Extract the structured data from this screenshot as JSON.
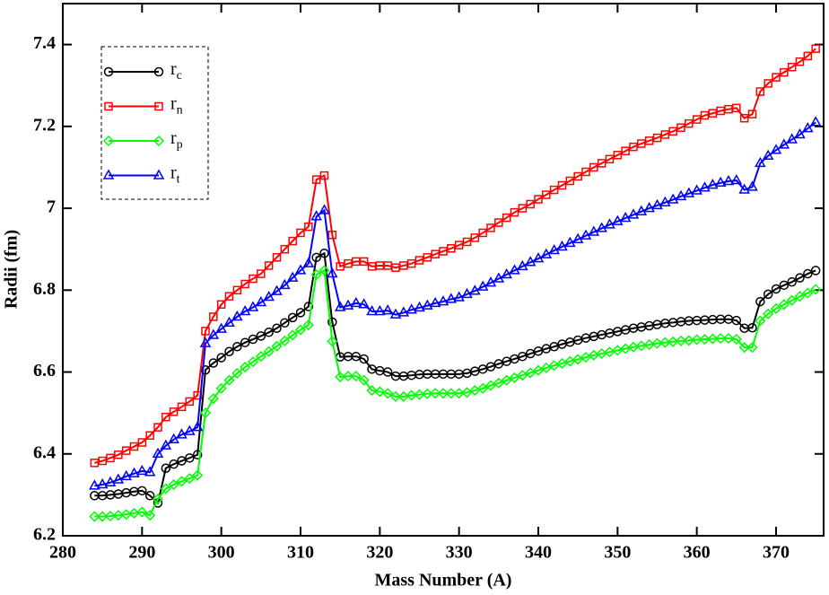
{
  "chart_data": {
    "type": "line",
    "xlabel": "Mass Number (A)",
    "ylabel": "Radii (fm)",
    "xlim": [
      280,
      376
    ],
    "ylim": [
      6.2,
      7.5
    ],
    "xticks": [
      280,
      290,
      300,
      310,
      320,
      330,
      340,
      350,
      360,
      370
    ],
    "yticks": [
      6.2,
      6.4,
      6.6,
      6.8,
      7,
      7.2,
      7.4
    ],
    "legend": "upper left",
    "x": [
      284,
      285,
      286,
      287,
      288,
      289,
      290,
      291,
      292,
      293,
      294,
      295,
      296,
      297,
      298,
      299,
      300,
      301,
      302,
      303,
      304,
      305,
      306,
      307,
      308,
      309,
      310,
      311,
      312,
      313,
      314,
      315,
      316,
      317,
      318,
      319,
      320,
      321,
      322,
      323,
      324,
      325,
      326,
      327,
      328,
      329,
      330,
      331,
      332,
      333,
      334,
      335,
      336,
      337,
      338,
      339,
      340,
      341,
      342,
      343,
      344,
      345,
      346,
      347,
      348,
      349,
      350,
      351,
      352,
      353,
      354,
      355,
      356,
      357,
      358,
      359,
      360,
      361,
      362,
      363,
      364,
      365,
      366,
      367,
      368,
      369,
      370,
      371,
      372,
      373,
      374,
      375
    ],
    "series": [
      {
        "name": "rc",
        "color": "#000000",
        "marker": "circle",
        "values": [
          6.298,
          6.298,
          6.3,
          6.302,
          6.305,
          6.308,
          6.31,
          6.298,
          6.28,
          6.365,
          6.375,
          6.383,
          6.39,
          6.398,
          6.605,
          6.622,
          6.635,
          6.65,
          6.662,
          6.672,
          6.68,
          6.688,
          6.697,
          6.707,
          6.72,
          6.733,
          6.745,
          6.76,
          6.88,
          6.89,
          6.722,
          6.637,
          6.638,
          6.638,
          6.632,
          6.607,
          6.603,
          6.6,
          6.59,
          6.59,
          6.592,
          6.594,
          6.595,
          6.595,
          6.595,
          6.595,
          6.595,
          6.597,
          6.602,
          6.607,
          6.613,
          6.62,
          6.626,
          6.632,
          6.638,
          6.645,
          6.651,
          6.657,
          6.662,
          6.668,
          6.673,
          6.678,
          6.683,
          6.687,
          6.691,
          6.695,
          6.699,
          6.703,
          6.707,
          6.71,
          6.713,
          6.716,
          6.719,
          6.721,
          6.723,
          6.725,
          6.726,
          6.727,
          6.728,
          6.729,
          6.729,
          6.726,
          6.707,
          6.708,
          6.772,
          6.79,
          6.803,
          6.812,
          6.82,
          6.83,
          6.84,
          6.848
        ]
      },
      {
        "name": "rn",
        "color": "#ff0000",
        "marker": "square",
        "values": [
          6.378,
          6.383,
          6.39,
          6.398,
          6.408,
          6.418,
          6.428,
          6.445,
          6.465,
          6.49,
          6.503,
          6.515,
          6.528,
          6.543,
          6.7,
          6.735,
          6.765,
          6.785,
          6.8,
          6.815,
          6.828,
          6.84,
          6.86,
          6.88,
          6.9,
          6.92,
          6.94,
          6.955,
          7.07,
          7.08,
          6.935,
          6.858,
          6.865,
          6.87,
          6.87,
          6.858,
          6.86,
          6.86,
          6.855,
          6.86,
          6.865,
          6.873,
          6.88,
          6.888,
          6.895,
          6.902,
          6.91,
          6.918,
          6.928,
          6.94,
          6.952,
          6.965,
          6.977,
          6.99,
          7.0,
          7.01,
          7.022,
          7.033,
          7.045,
          7.056,
          7.067,
          7.078,
          7.089,
          7.1,
          7.11,
          7.12,
          7.13,
          7.14,
          7.15,
          7.158,
          7.165,
          7.172,
          7.18,
          7.188,
          7.197,
          7.207,
          7.217,
          7.227,
          7.232,
          7.238,
          7.242,
          7.245,
          7.22,
          7.23,
          7.285,
          7.305,
          7.32,
          7.332,
          7.345,
          7.358,
          7.372,
          7.39
        ]
      },
      {
        "name": "rp",
        "color": "#00ff00",
        "marker": "diamond",
        "values": [
          6.247,
          6.247,
          6.248,
          6.25,
          6.252,
          6.255,
          6.258,
          6.25,
          6.29,
          6.315,
          6.325,
          6.333,
          6.34,
          6.348,
          6.5,
          6.535,
          6.56,
          6.58,
          6.597,
          6.612,
          6.625,
          6.638,
          6.65,
          6.663,
          6.676,
          6.69,
          6.703,
          6.715,
          6.838,
          6.848,
          6.675,
          6.588,
          6.59,
          6.59,
          6.58,
          6.555,
          6.552,
          6.548,
          6.54,
          6.54,
          6.543,
          6.545,
          6.547,
          6.548,
          6.548,
          6.548,
          6.548,
          6.55,
          6.555,
          6.56,
          6.567,
          6.573,
          6.58,
          6.586,
          6.592,
          6.598,
          6.604,
          6.61,
          6.616,
          6.621,
          6.626,
          6.631,
          6.636,
          6.641,
          6.645,
          6.649,
          6.653,
          6.657,
          6.661,
          6.664,
          6.667,
          6.67,
          6.672,
          6.674,
          6.676,
          6.677,
          6.679,
          6.68,
          6.681,
          6.682,
          6.682,
          6.68,
          6.66,
          6.66,
          6.725,
          6.742,
          6.755,
          6.765,
          6.775,
          6.785,
          6.793,
          6.802
        ]
      },
      {
        "name": "rt",
        "color": "#0000ff",
        "marker": "triangle",
        "values": [
          6.322,
          6.325,
          6.33,
          6.337,
          6.345,
          6.352,
          6.358,
          6.355,
          6.4,
          6.42,
          6.435,
          6.447,
          6.455,
          6.465,
          6.67,
          6.69,
          6.705,
          6.72,
          6.735,
          6.748,
          6.758,
          6.77,
          6.783,
          6.797,
          6.812,
          6.83,
          6.848,
          6.865,
          6.98,
          6.995,
          6.84,
          6.758,
          6.762,
          6.768,
          6.765,
          6.748,
          6.748,
          6.75,
          6.74,
          6.745,
          6.752,
          6.757,
          6.762,
          6.768,
          6.772,
          6.778,
          6.782,
          6.79,
          6.798,
          6.808,
          6.818,
          6.828,
          6.838,
          6.848,
          6.858,
          6.868,
          6.877,
          6.887,
          6.897,
          6.906,
          6.915,
          6.924,
          6.933,
          6.942,
          6.951,
          6.96,
          6.968,
          6.976,
          6.984,
          6.992,
          7.0,
          7.007,
          7.014,
          7.021,
          7.029,
          7.036,
          7.043,
          7.05,
          7.057,
          7.062,
          7.066,
          7.068,
          7.045,
          7.052,
          7.11,
          7.128,
          7.142,
          7.155,
          7.168,
          7.18,
          7.195,
          7.21
        ]
      }
    ]
  }
}
